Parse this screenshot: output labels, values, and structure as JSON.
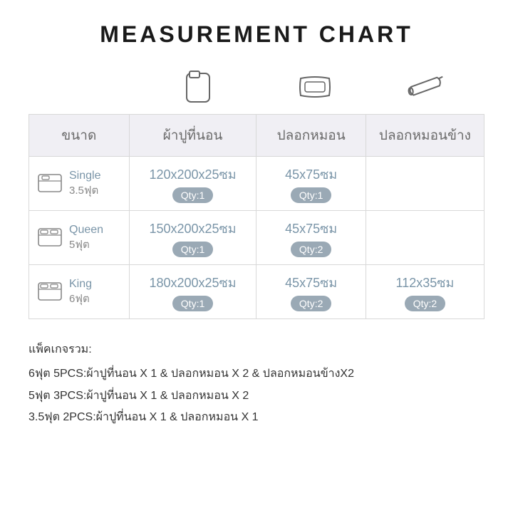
{
  "title": "MEASUREMENT CHART",
  "colors": {
    "header_bg": "#f0eff4",
    "header_text": "#6a6a6a",
    "border": "#d8d8d8",
    "accent_text": "#7a95a8",
    "qty_bg": "#9aa9b5",
    "qty_text": "#ffffff",
    "body_text": "#333333",
    "sub_text": "#888888",
    "icon_stroke": "#666666"
  },
  "columns": [
    "ขนาด",
    "ผ้าปูที่นอน",
    "ปลอกหมอน",
    "ปลอกหมอนข้าง"
  ],
  "rows": [
    {
      "size_name": "Single",
      "size_sub": "3.5ฟุต",
      "sheet": {
        "dim": "120x200x25ซม",
        "qty": "Qty:1"
      },
      "pillow": {
        "dim": "45x75ซม",
        "qty": "Qty:1"
      },
      "bolster": null
    },
    {
      "size_name": "Queen",
      "size_sub": "5ฟุต",
      "sheet": {
        "dim": "150x200x25ซม",
        "qty": "Qty:1"
      },
      "pillow": {
        "dim": "45x75ซม",
        "qty": "Qty:2"
      },
      "bolster": null
    },
    {
      "size_name": "King",
      "size_sub": "6ฟุต",
      "sheet": {
        "dim": "180x200x25ซม",
        "qty": "Qty:1"
      },
      "pillow": {
        "dim": "45x75ซม",
        "qty": "Qty:2"
      },
      "bolster": {
        "dim": "112x35ซม",
        "qty": "Qty:2"
      }
    }
  ],
  "notes": {
    "title": "แพ็คเกจรวม:",
    "lines": [
      "6ฟุต 5PCS:ผ้าปูที่นอน X 1 & ปลอกหมอน X 2 &  ปลอกหมอนข้างX2",
      "5ฟุต 3PCS:ผ้าปูที่นอน X 1 & ปลอกหมอน X 2",
      "3.5ฟุต 2PCS:ผ้าปูที่นอน X 1 & ปลอกหมอน X 1"
    ]
  },
  "typography": {
    "title_fontsize": 32,
    "title_letter_spacing": 4,
    "header_fontsize": 19,
    "measure_fontsize": 18,
    "qty_fontsize": 14,
    "notes_fontsize": 16
  }
}
